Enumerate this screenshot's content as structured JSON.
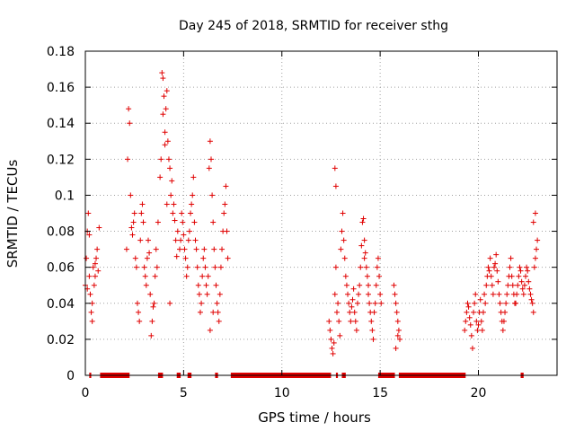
{
  "colors": {
    "points": "#e00000",
    "zero_bar": "#e00000"
  },
  "chart_data": {
    "type": "scatter",
    "title": "Day 245 of 2018, SRMTID for receiver sthg",
    "xlabel": "GPS time / hours",
    "ylabel": "SRMTID / TECUs",
    "xlim": [
      0,
      24
    ],
    "ylim": [
      0,
      0.18
    ],
    "grid": true,
    "marker": "plus",
    "xticks": [
      {
        "value": 0,
        "label": "0"
      },
      {
        "value": 5,
        "label": "5"
      },
      {
        "value": 10,
        "label": "10"
      },
      {
        "value": 15,
        "label": "15"
      },
      {
        "value": 20,
        "label": "20"
      }
    ],
    "yticks": [
      {
        "value": 0,
        "label": "0"
      },
      {
        "value": 0.02,
        "label": "0.02"
      },
      {
        "value": 0.04,
        "label": "0.04"
      },
      {
        "value": 0.06,
        "label": "0.06"
      },
      {
        "value": 0.08,
        "label": "0.08"
      },
      {
        "value": 0.1,
        "label": "0.1"
      },
      {
        "value": 0.12,
        "label": "0.12"
      },
      {
        "value": 0.14,
        "label": "0.14"
      },
      {
        "value": 0.16,
        "label": "0.16"
      },
      {
        "value": 0.18,
        "label": "0.18"
      }
    ],
    "series": [
      {
        "name": "SRMTID",
        "x": [
          0.0,
          0.05,
          0.1,
          0.15,
          0.2,
          0.25,
          0.3,
          0.35,
          0.4,
          0.45,
          0.5,
          0.55,
          0.6,
          0.65,
          0.7,
          0.1,
          0.2,
          0.35,
          0.5,
          2.1,
          2.15,
          2.2,
          2.25,
          2.3,
          2.35,
          2.4,
          2.45,
          2.5,
          2.55,
          2.6,
          2.65,
          2.7,
          2.75,
          2.8,
          2.85,
          2.9,
          2.95,
          3.0,
          3.05,
          3.1,
          3.15,
          3.2,
          3.25,
          3.3,
          3.35,
          3.4,
          3.45,
          3.5,
          3.55,
          3.6,
          3.65,
          3.7,
          3.8,
          3.85,
          3.9,
          3.95,
          4.0,
          4.05,
          4.1,
          4.15,
          4.2,
          4.25,
          4.3,
          4.35,
          4.4,
          4.45,
          4.5,
          4.55,
          4.6,
          4.65,
          4.7,
          3.95,
          4.05,
          4.15,
          4.3,
          4.8,
          4.85,
          4.9,
          4.95,
          5.0,
          5.05,
          5.1,
          5.15,
          5.2,
          5.25,
          5.3,
          5.35,
          5.4,
          5.45,
          5.5,
          5.55,
          5.6,
          5.65,
          5.7,
          5.75,
          5.8,
          5.85,
          5.9,
          5.95,
          6.0,
          6.05,
          6.1,
          6.15,
          6.2,
          6.25,
          6.3,
          6.35,
          6.4,
          6.45,
          6.5,
          6.55,
          6.6,
          6.65,
          6.7,
          6.75,
          6.8,
          6.85,
          6.9,
          6.95,
          7.0,
          7.05,
          7.1,
          7.15,
          7.2,
          7.25,
          6.35,
          6.5,
          12.4,
          12.45,
          12.5,
          12.55,
          12.6,
          12.65,
          12.7,
          12.75,
          12.8,
          12.85,
          12.9,
          12.95,
          13.0,
          13.05,
          13.1,
          13.15,
          13.2,
          13.25,
          13.3,
          13.35,
          13.4,
          13.45,
          13.5,
          13.55,
          13.6,
          13.65,
          13.7,
          13.75,
          13.8,
          13.85,
          13.9,
          12.7,
          12.75,
          13.95,
          14.0,
          14.05,
          14.1,
          14.15,
          14.2,
          14.25,
          14.3,
          14.35,
          14.4,
          14.45,
          14.5,
          14.55,
          14.6,
          14.65,
          14.7,
          14.75,
          14.8,
          14.85,
          14.9,
          14.95,
          15.0,
          15.05,
          14.2,
          14.4,
          15.7,
          15.75,
          15.8,
          15.85,
          15.9,
          15.95,
          16.0,
          15.8,
          15.9,
          19.3,
          19.35,
          19.4,
          19.45,
          19.5,
          19.55,
          19.6,
          19.65,
          19.7,
          19.75,
          19.8,
          19.85,
          19.9,
          19.95,
          20.0,
          20.05,
          20.1,
          20.15,
          20.2,
          20.25,
          20.3,
          20.35,
          20.4,
          20.45,
          20.5,
          20.55,
          20.6,
          20.65,
          20.7,
          20.75,
          20.8,
          20.85,
          20.9,
          20.95,
          21.0,
          21.05,
          21.1,
          21.15,
          21.2,
          21.25,
          21.3,
          21.35,
          21.4,
          21.45,
          21.5,
          21.55,
          21.6,
          21.65,
          21.7,
          21.75,
          21.8,
          21.85,
          21.9,
          21.95,
          22.0,
          22.05,
          22.1,
          22.15,
          22.2,
          22.25,
          22.3,
          22.35,
          22.4,
          22.45,
          22.5,
          22.55,
          22.6,
          22.65,
          22.7,
          22.75,
          22.8,
          22.85,
          22.9,
          22.95,
          23.0,
          22.8,
          22.9
        ],
        "y": [
          0.05,
          0.065,
          0.08,
          0.09,
          0.055,
          0.045,
          0.035,
          0.03,
          0.06,
          0.05,
          0.055,
          0.065,
          0.07,
          0.058,
          0.082,
          0.048,
          0.078,
          0.04,
          0.062,
          0.07,
          0.12,
          0.148,
          0.14,
          0.1,
          0.082,
          0.078,
          0.085,
          0.09,
          0.065,
          0.06,
          0.04,
          0.035,
          0.03,
          0.075,
          0.09,
          0.095,
          0.085,
          0.06,
          0.055,
          0.05,
          0.065,
          0.075,
          0.068,
          0.045,
          0.022,
          0.03,
          0.038,
          0.04,
          0.055,
          0.07,
          0.06,
          0.085,
          0.11,
          0.12,
          0.168,
          0.165,
          0.155,
          0.135,
          0.148,
          0.158,
          0.13,
          0.12,
          0.115,
          0.1,
          0.108,
          0.09,
          0.095,
          0.086,
          0.075,
          0.066,
          0.08,
          0.145,
          0.128,
          0.095,
          0.04,
          0.07,
          0.075,
          0.09,
          0.085,
          0.078,
          0.07,
          0.065,
          0.055,
          0.06,
          0.075,
          0.08,
          0.09,
          0.095,
          0.1,
          0.11,
          0.085,
          0.075,
          0.07,
          0.06,
          0.05,
          0.045,
          0.035,
          0.04,
          0.055,
          0.065,
          0.07,
          0.06,
          0.05,
          0.045,
          0.055,
          0.115,
          0.13,
          0.12,
          0.1,
          0.085,
          0.07,
          0.06,
          0.05,
          0.04,
          0.035,
          0.03,
          0.045,
          0.06,
          0.07,
          0.08,
          0.09,
          0.095,
          0.105,
          0.08,
          0.065,
          0.025,
          0.035,
          0.03,
          0.025,
          0.02,
          0.015,
          0.012,
          0.018,
          0.045,
          0.06,
          0.035,
          0.04,
          0.03,
          0.022,
          0.07,
          0.08,
          0.09,
          0.075,
          0.065,
          0.055,
          0.05,
          0.045,
          0.04,
          0.035,
          0.03,
          0.038,
          0.042,
          0.048,
          0.035,
          0.03,
          0.025,
          0.04,
          0.045,
          0.115,
          0.105,
          0.05,
          0.06,
          0.072,
          0.085,
          0.087,
          0.075,
          0.068,
          0.06,
          0.055,
          0.045,
          0.04,
          0.035,
          0.03,
          0.025,
          0.02,
          0.035,
          0.04,
          0.05,
          0.06,
          0.065,
          0.055,
          0.045,
          0.04,
          0.065,
          0.05,
          0.05,
          0.045,
          0.04,
          0.035,
          0.03,
          0.025,
          0.02,
          0.015,
          0.022,
          0.025,
          0.03,
          0.035,
          0.04,
          0.038,
          0.032,
          0.028,
          0.022,
          0.015,
          0.035,
          0.04,
          0.045,
          0.03,
          0.025,
          0.028,
          0.035,
          0.042,
          0.03,
          0.025,
          0.035,
          0.045,
          0.04,
          0.05,
          0.055,
          0.06,
          0.058,
          0.065,
          0.055,
          0.05,
          0.045,
          0.06,
          0.062,
          0.067,
          0.058,
          0.052,
          0.045,
          0.04,
          0.035,
          0.03,
          0.025,
          0.03,
          0.035,
          0.04,
          0.045,
          0.05,
          0.055,
          0.06,
          0.065,
          0.055,
          0.05,
          0.045,
          0.04,
          0.04,
          0.045,
          0.05,
          0.055,
          0.06,
          0.058,
          0.052,
          0.048,
          0.045,
          0.05,
          0.055,
          0.06,
          0.058,
          0.052,
          0.048,
          0.045,
          0.042,
          0.04,
          0.035,
          0.06,
          0.065,
          0.07,
          0.075,
          0.085,
          0.09
        ],
        "zero_runs": [
          [
            0.2,
            0.3
          ],
          [
            0.75,
            2.25
          ],
          [
            3.7,
            3.95
          ],
          [
            4.65,
            4.85
          ],
          [
            5.2,
            5.4
          ],
          [
            6.6,
            6.75
          ],
          [
            7.4,
            12.5
          ],
          [
            12.75,
            12.85
          ],
          [
            13.05,
            13.25
          ],
          [
            14.9,
            15.75
          ],
          [
            15.95,
            19.35
          ],
          [
            22.15,
            22.3
          ]
        ]
      }
    ]
  }
}
